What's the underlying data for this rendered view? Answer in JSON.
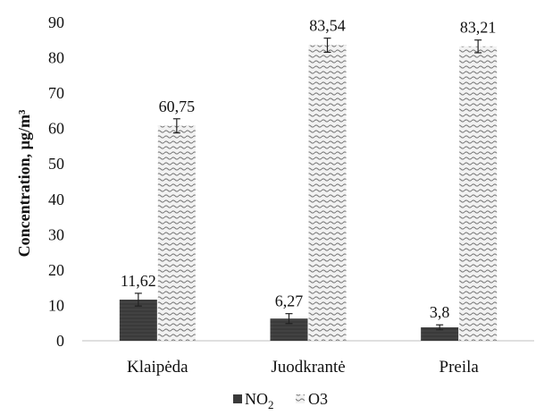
{
  "chart_data": {
    "type": "bar",
    "title": "",
    "xlabel": "",
    "ylabel": "Concentration, µg/m³",
    "ylim": [
      0,
      90
    ],
    "yticks": [
      0,
      10,
      20,
      30,
      40,
      50,
      60,
      70,
      80,
      90
    ],
    "categories": [
      "Klaipėda",
      "Juodkrantė",
      "Preila"
    ],
    "series": [
      {
        "name": "NO₂",
        "name_base": "NO",
        "name_sub": "2",
        "values": [
          11.62,
          6.27,
          3.8
        ],
        "labels": [
          "11,62",
          "6,27",
          "3,8"
        ],
        "err": [
          1.8,
          1.4,
          0.7
        ],
        "color": "#3a3a3a",
        "pattern": "solid-dark"
      },
      {
        "name": "O3",
        "values": [
          60.75,
          83.54,
          83.21
        ],
        "labels": [
          "60,75",
          "83,54",
          "83,21"
        ],
        "err": [
          2.0,
          2.0,
          1.8
        ],
        "color": "#8a8a8a",
        "pattern": "wavy-hatch"
      }
    ],
    "grid": false,
    "legend_position": "bottom-center"
  }
}
